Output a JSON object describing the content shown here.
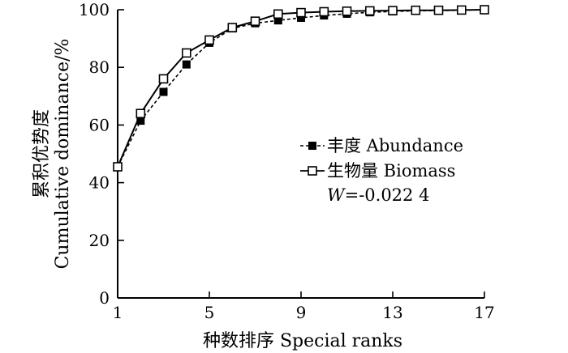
{
  "chart_data": {
    "type": "line",
    "title": "",
    "xlabel": "种数排序 Special ranks",
    "ylabel_line1": "累积优势度",
    "ylabel_line2": "Cumulative dominance/%",
    "xlim": [
      1,
      17
    ],
    "ylim": [
      0,
      100
    ],
    "x_ticks": [
      1,
      5,
      9,
      13,
      17
    ],
    "y_ticks": [
      0,
      20,
      40,
      60,
      80,
      100
    ],
    "grid": false,
    "legend_position": "right-middle",
    "x": [
      1,
      2,
      3,
      4,
      5,
      6,
      7,
      8,
      9,
      10,
      11,
      12,
      13,
      14,
      15,
      16,
      17
    ],
    "series": [
      {
        "name": "丰度 Abundance",
        "marker": "filled-square",
        "line_style": "dashed",
        "color": "#000000",
        "values": [
          45.5,
          61.5,
          71.5,
          81,
          88.5,
          93.5,
          95.3,
          96.3,
          97.2,
          98,
          98.6,
          99.1,
          99.4,
          99.6,
          99.7,
          99.8,
          100
        ]
      },
      {
        "name": "生物量 Biomass",
        "marker": "open-square",
        "line_style": "solid",
        "color": "#000000",
        "values": [
          45.5,
          64,
          76,
          85,
          89.5,
          93.8,
          96,
          98.5,
          99,
          99.3,
          99.5,
          99.6,
          99.7,
          99.8,
          99.8,
          99.9,
          100
        ]
      }
    ],
    "annotation": {
      "italic_part": "W",
      "rest": "=-0.022 4"
    }
  }
}
